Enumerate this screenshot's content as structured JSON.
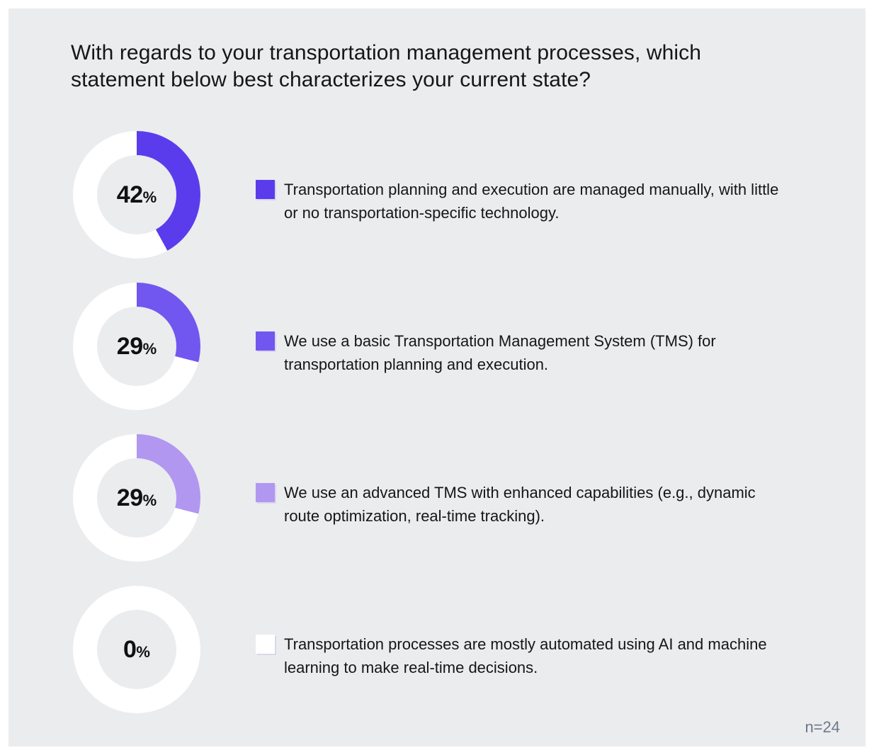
{
  "chart_data": {
    "type": "pie",
    "subtype": "donut-multiples",
    "title": "With regards to your transportation management processes, which statement below best characterizes your current state?",
    "unit": "%",
    "note": "n=24",
    "start_angle": "12-oclock-clockwise",
    "remainder_color": "#FFFFFF",
    "hole_color": "#EBECEE",
    "series": [
      {
        "label": "Transportation planning and execution are managed manually, with little or no transportation-specific technology.",
        "value": 42,
        "color": "#5B3CEC"
      },
      {
        "label": "We use a basic Transportation Management System (TMS) for transportation planning and execution.",
        "value": 29,
        "color": "#7157EF"
      },
      {
        "label": "We use an advanced TMS with enhanced capabilities (e.g., dynamic route optimization, real-time tracking).",
        "value": 29,
        "color": "#B197F0"
      },
      {
        "label": "Transportation processes are mostly automated using AI and machine learning to make real-time decisions.",
        "value": 0,
        "color": "#FFFFFF"
      }
    ]
  },
  "colors": {
    "panel_background": "#EBECEE",
    "frame_background": "#FFFFFF",
    "title_text": "#161616",
    "legend_text": "#161616",
    "footnote_text": "#6E7A8A"
  }
}
